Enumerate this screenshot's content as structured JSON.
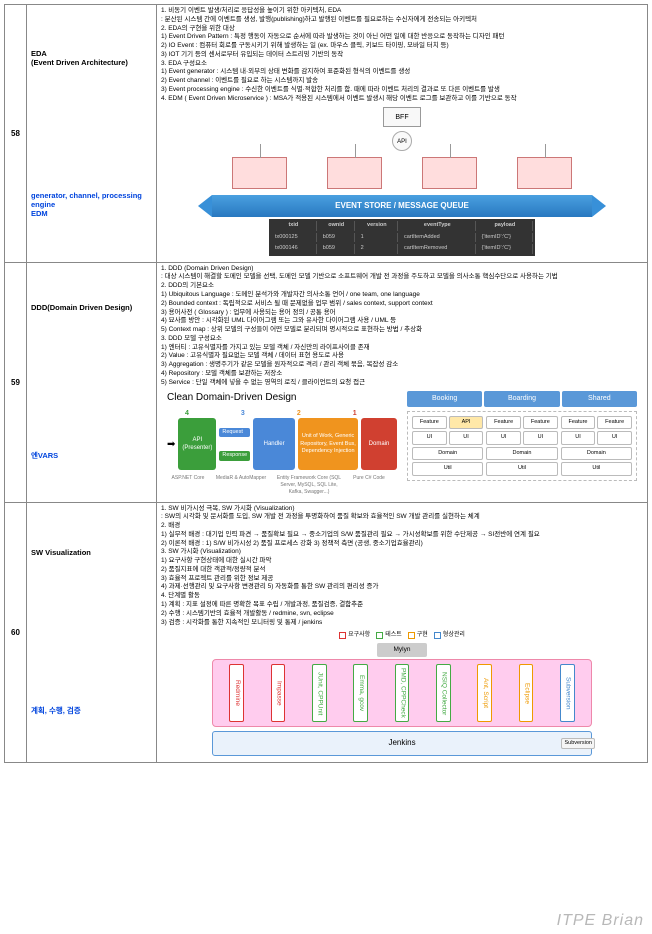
{
  "watermark": "ITPE  Brian",
  "rows": [
    {
      "num": "58",
      "topic": "EDA\n(Event Driven Architecture)",
      "sub": "generator, channel, processing engine\nEDM",
      "text": "1. 비동기 이벤트 발생/처리로 응답성을 높이기 위한 아키텍처, EDA\n: 분산된 시스템 간에 이벤트를 생성, 발행(publishing)하고 발행된 이벤트를 필요로하는 수신자에게 전송되는 아키텍처\n2. EDA의 구현을 위한 대상\n1) Event Driven Pattern : 특정 행동이 자동으로 순서에 따라 발생하는 것이 아닌 어떤 일에 대한 반응으로 동작하는 디자인 패턴\n2) IO Event : 컴퓨터 회로를 구동시키기 위해 발생하는 일 (ex. 마우스 클릭, 키보드 타이핑, 모바일 터치 등)\n3) IOT 기기 등의 센서로부터 유입되는 데이터 스트리밍 기반의 동작\n3. EDA 구성요소\n1) Event generator : 시스템 내·외부의 상태 변화를 감지하여 표준화된 형식의 이벤트를 생성\n2) Event channel : 이벤트를 필요로 하는 시스템까지 발송\n3) Event processing engine : 수신한 이벤트를 식별·적합한 처리를 함. 때에 따라 이벤트 처리의 결과로 또 다른 이벤트를 발생\n4. EDM ( Event Driven Microservice ) : MSA가 적용된 시스템에서 이벤트 발생시 해당 이벤트 로그를 보관하고 이를 기반으로 동작",
      "diagram": "eda"
    },
    {
      "num": "59",
      "topic": "DDD(Domain Driven Design)",
      "sub": "엔VARS",
      "text": "1. DDD (Domain Driven Design)\n: 대상 시스템이 해결할 도메인 모델을 선택, 도메인 모델 기반으로 소프트웨어 개발 전 과정을 주도하고 모델을 의사소통 핵심수단으로 사용하는 기법\n2. DDD의 기본요소\n1) Ubiquitous Language : 도메인 분석가와 개발자간 의사소통 언어 / one team, one language\n2) Bounded context : 독립적으로 서비스 될 때 문제없을 업무 범위 / sales context, support context\n3) 용어사전 ( Glossary ) : 업무에 사용되는 용어 정의 / 공통 용어\n4) 묘사를 방안 : 시각화된 UML 다이어그램 또는 그와 유사한 다이어그램 사용 / UML 등\n5) Context map : 상위 모델의 구성들이 어떤 모델로 분리되며 명시적으로 표현하는 방법 / 추상화\n3. DDD 모델 구성요소\n1) 엔터티 : 고유식별자를 가지고 있는 모델 객체 / 자신만의 라이프사이클 존재\n2) Value : 고유식별자 필요없는 모델 객체 / 데이터 표현 용도로 사용\n3) Aggregation : 생명주기가 같은 모델을 원자적으로 격리 / 관리 객체 묶음, 복잡성 감소\n4) Repository : 모델 객체를 보관하는 저장소\n5) Service : 단일 객체에 넣을 수 없는 영역의 로직 / 클라이언트의 요청 접근",
      "diagram": "ddd"
    },
    {
      "num": "60",
      "topic": "SW Visualization",
      "sub": "계획, 수행, 검증",
      "text": "1. SW 비가시성 극복, SW 가시화 (Visualization)\n: SW의 시각화 및 문서화를 도입, SW 개발 전 과정을 투명화하여 품질 확보와 효율적인 SW 개발 관리를 실현하는 체계\n2. 배경\n1) 실무적 배경 : 대기업 인력 파견 → 품질확보 필요 → 중소기업의 S/W 품질관리 필요 → 가시성확보를 위한 수단제공 → SI전반에 연계 필요\n2) 이론적 배경 : 1) S/W 비가시성 2) 품질 프로세스 강화 3) 정책적 측면 (공생, 중소기업효율관리)\n3. SW 가시화 (Visualization)\n1) 요구사항 구현상태에 대한 실시간 파악\n2) 품질지표에 대한 객관적/정량적 분석\n3) 효율적 프로젝트 관리를 위한 정보 제공\n4) 과제·선행관리 및 요구사항 변경관리   5) 자동화를 통한 SW 관리의 편리성 증가\n4. 단계별 활동\n1) 계획 : 지표 설정에 따른 명확한 목표 수립 / 개발과정, 품질검증, 결함추준\n2) 수행 : 시스템기반의 효율적 개발활동 / redmine, svn, eclipse\n3) 검증 : 시각화를 통한 지속적인 모니터링 및 통제 / jenkins",
      "diagram": "sw"
    }
  ],
  "eda": {
    "bff": "BFF",
    "api": "API",
    "queue": "EVENT  STORE / MESSAGE QUEUE",
    "thead": [
      "txid",
      "ownid",
      "version",
      "eventType",
      "payload"
    ],
    "trows": [
      [
        "tx000125",
        "b059",
        "1",
        "cartItemAdded",
        "{'itemID':'C'}"
      ],
      [
        "tx000146",
        "b059",
        "2",
        "cartItemRemoved",
        "{'itemID':'C'}"
      ]
    ]
  },
  "ddd": {
    "title": "Clean Domain-Driven Design",
    "n1": "1",
    "n2": "2",
    "n3": "3",
    "n4": "4",
    "api": "API\n(Presenter)",
    "req": "Request",
    "resp": "Response",
    "hand": "Handler",
    "uow": "Unit of Work, Generic Repository, Event Bus, Dependency Injection",
    "dom": "Domain",
    "s1": "ASP.NET Core",
    "s2": "MediaR & AutoMapper",
    "s3": "Entity Framework Core (SQL Server, MySQL, SQL Lite, Kafka, Swagger...)",
    "s4": "Pure C# Code",
    "tabs": [
      "Booking",
      "Boarding",
      "Shared"
    ],
    "feat": "Feature",
    "apil": "API",
    "ui": "UI",
    "doml": "Domain",
    "util": "Util"
  },
  "sw": {
    "legend": [
      {
        "c": "#d33",
        "t": "요구사항"
      },
      {
        "c": "#4a4",
        "t": "테스트"
      },
      {
        "c": "#e90",
        "t": "구현"
      },
      {
        "c": "#48c",
        "t": "형상관리"
      }
    ],
    "mylyn": "Mylyn",
    "tools": [
      {
        "t": "Redmine",
        "c": "#d33"
      },
      {
        "t": "Impasse",
        "c": "#d33"
      },
      {
        "t": "JUnit, CPPUnit",
        "c": "#4a4"
      },
      {
        "t": "Emma, gcov",
        "c": "#4a4"
      },
      {
        "t": "PMD, CPPCheck",
        "c": "#4a4"
      },
      {
        "t": "NSIQ Collector",
        "c": "#4a4"
      },
      {
        "t": "Ant, Script",
        "c": "#e90"
      },
      {
        "t": "Eclipse",
        "c": "#e90"
      },
      {
        "t": "Subversion",
        "c": "#48c"
      }
    ],
    "jenkins": "Jenkins",
    "subv": "Subversion"
  }
}
